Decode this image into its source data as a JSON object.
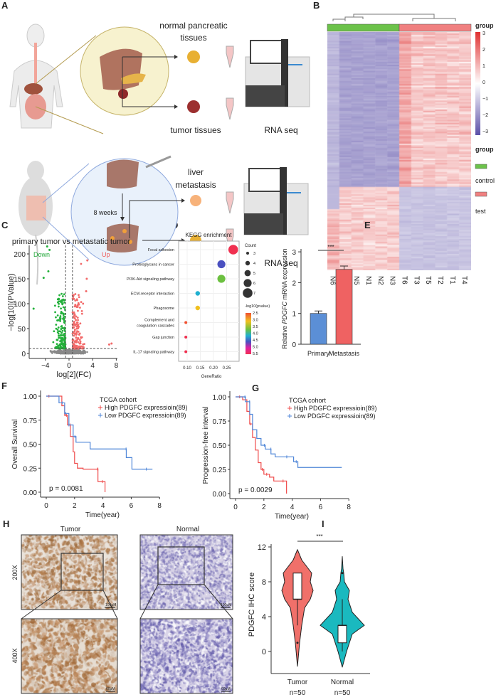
{
  "panels": {
    "A": "A",
    "B": "B",
    "C": "C",
    "D": "D",
    "E": "E",
    "F": "F",
    "G": "G",
    "H": "H",
    "I": "I"
  },
  "panel_a": {
    "normal_line1": "normal pancreatic",
    "normal_line2": "tissues",
    "tumor_tissues": "tumor tissues",
    "rna_seq_1": "RNA seq",
    "liver": "liver",
    "metastasis": "metastasis",
    "weeks": "8 weeks",
    "primary": "primary",
    "tumor": "tumor",
    "rna_seq_2": "RNA seq"
  },
  "panel_b": {
    "columns": [
      "N6",
      "N4",
      "N5",
      "N1",
      "N2",
      "N3",
      "T6",
      "T3",
      "T5",
      "T2",
      "T1",
      "T4"
    ],
    "legend_title": "group",
    "scale_ticks": [
      "3",
      "2",
      "1",
      "0",
      "−1",
      "−2",
      "−3"
    ],
    "group_title": "group",
    "control": "control",
    "test": "test",
    "colors": {
      "control": "#6cc24a",
      "test": "#f08080",
      "high": "#e03030",
      "low": "#5b4fa8"
    }
  },
  "chart_data": [
    {
      "id": "C",
      "type": "scatter",
      "title": "primary tumor vs metastatic tumor",
      "xlabel": "log[2](FC)",
      "ylabel": "−log[10](PValue)",
      "xticks": [
        "−4",
        "0",
        "4",
        "8"
      ],
      "yticks": [
        "0",
        "50",
        "100",
        "150",
        "200"
      ],
      "xlim": [
        -7,
        8
      ],
      "ylim": [
        0,
        215
      ],
      "annotations": {
        "down": "Down",
        "up": "Up"
      },
      "thresholds": {
        "fc": 0.585,
        "p": 10
      }
    },
    {
      "id": "D",
      "type": "scatter",
      "title": "KEGG enrichment",
      "xlabel": "GeneRatio",
      "xticks": [
        "0.10",
        "0.15",
        "0.20",
        "0.25"
      ],
      "xlim": [
        0.085,
        0.29
      ],
      "pathways": [
        {
          "name": "Focal adhesion",
          "ratio": 0.275,
          "count": 7,
          "log10p": 5.5
        },
        {
          "name": "Proteoglycans in cancer",
          "ratio": 0.23,
          "count": 6,
          "log10p": 4.7
        },
        {
          "name": "PI3K-Akt signaling pathway",
          "ratio": 0.23,
          "count": 6,
          "log10p": 3.6
        },
        {
          "name": "ECM-receptor interaction",
          "ratio": 0.14,
          "count": 4,
          "log10p": 3.8
        },
        {
          "name": "Phagosome",
          "ratio": 0.14,
          "count": 4,
          "log10p": 2.8
        },
        {
          "name": "Complement and|coagulation cascades",
          "ratio": 0.095,
          "count": 3,
          "log10p": 2.7
        },
        {
          "name": "Gap junction",
          "ratio": 0.095,
          "count": 3,
          "log10p": 5.3
        },
        {
          "name": "IL-17 signaling pathway",
          "ratio": 0.095,
          "count": 3,
          "log10p": 5.5
        }
      ],
      "count_legend": {
        "title": "Count",
        "values": [
          "3",
          "4",
          "5",
          "6",
          "7"
        ]
      },
      "color_legend": {
        "title": "-log10(pvalue)",
        "values": [
          "2.5",
          "3.0",
          "3.5",
          "4.0",
          "4.5",
          "5.0",
          "5.5"
        ]
      }
    },
    {
      "id": "E",
      "type": "bar",
      "categories": [
        "Primary",
        "Metastasis"
      ],
      "values": [
        1.0,
        2.43
      ],
      "errors": [
        0.08,
        0.11
      ],
      "ylabel_pre": "Relative ",
      "ylabel_gene": "PDGFC",
      "ylabel_post": " mRNA expression",
      "yticks": [
        "0",
        "1",
        "2",
        "3"
      ],
      "ylim": [
        0,
        3
      ],
      "significance": "***",
      "colors": [
        "#5b8fd6",
        "#ef6262"
      ]
    },
    {
      "id": "F",
      "type": "line",
      "ylabel": "Overall Survival",
      "xlabel": "Time(year)",
      "legend_title": "TCGA cohort",
      "pvalue": "p = 0.0081",
      "xticks": [
        "0",
        "2",
        "4",
        "6",
        "8"
      ],
      "yticks": [
        "0.00",
        "0.25",
        "0.50",
        "0.75",
        "1.00"
      ],
      "xlim": [
        0,
        8
      ],
      "ylim": [
        0,
        1
      ],
      "series": [
        {
          "name": "High PDGFC expressioin(89)",
          "color": "#ef4b4b",
          "points": [
            [
              0,
              1
            ],
            [
              0.8,
              1
            ],
            [
              1.1,
              0.9
            ],
            [
              1.3,
              0.8
            ],
            [
              1.5,
              0.7
            ],
            [
              1.7,
              0.58
            ],
            [
              1.9,
              0.42
            ],
            [
              2.0,
              0.3
            ],
            [
              2.2,
              0.25
            ],
            [
              2.6,
              0.24
            ],
            [
              3.6,
              0.24
            ],
            [
              3.65,
              0.11
            ],
            [
              4.15,
              0.11
            ],
            [
              4.15,
              0
            ]
          ]
        },
        {
          "name": "Low PDGFC expressioin(89)",
          "color": "#4f86d8",
          "points": [
            [
              0,
              1
            ],
            [
              0.9,
              0.93
            ],
            [
              1.3,
              0.82
            ],
            [
              1.6,
              0.7
            ],
            [
              1.9,
              0.58
            ],
            [
              2.1,
              0.52
            ],
            [
              3.0,
              0.52
            ],
            [
              3.1,
              0.45
            ],
            [
              5.6,
              0.45
            ],
            [
              5.65,
              0.36
            ],
            [
              6.0,
              0.36
            ],
            [
              6.05,
              0.24
            ],
            [
              7.5,
              0.24
            ]
          ]
        }
      ]
    },
    {
      "id": "G",
      "type": "line",
      "ylabel": "Progression-free interval",
      "xlabel": "Time(year)",
      "legend_title": "TCGA cohort",
      "pvalue": "p = 0.0029",
      "xticks": [
        "0",
        "2",
        "4",
        "6",
        "8"
      ],
      "yticks": [
        "0.00",
        "0.25",
        "0.50",
        "0.75",
        "1.00"
      ],
      "xlim": [
        0,
        8
      ],
      "ylim": [
        0,
        1
      ],
      "series": [
        {
          "name": "High PDGFC expressioin(89)",
          "color": "#ef4b4b",
          "points": [
            [
              0,
              1
            ],
            [
              0.5,
              0.97
            ],
            [
              0.8,
              0.85
            ],
            [
              1.0,
              0.72
            ],
            [
              1.2,
              0.58
            ],
            [
              1.4,
              0.45
            ],
            [
              1.6,
              0.32
            ],
            [
              1.8,
              0.25
            ],
            [
              2.0,
              0.2
            ],
            [
              2.4,
              0.17
            ],
            [
              2.7,
              0.13
            ],
            [
              3.6,
              0.13
            ],
            [
              3.6,
              0
            ]
          ]
        },
        {
          "name": "Low PDGFC expressioin(89)",
          "color": "#4f86d8",
          "points": [
            [
              0,
              1
            ],
            [
              0.7,
              0.95
            ],
            [
              1.0,
              0.82
            ],
            [
              1.2,
              0.66
            ],
            [
              1.5,
              0.57
            ],
            [
              1.8,
              0.5
            ],
            [
              2.1,
              0.46
            ],
            [
              2.5,
              0.41
            ],
            [
              2.8,
              0.38
            ],
            [
              3.5,
              0.38
            ],
            [
              4.1,
              0.33
            ],
            [
              4.4,
              0.27
            ],
            [
              7.5,
              0.27
            ]
          ]
        }
      ]
    },
    {
      "id": "I",
      "type": "violin",
      "ylabel": "PDGFC IHC score",
      "categories": [
        "Tumor",
        "Normal"
      ],
      "n_labels": [
        "n=50",
        "n=50"
      ],
      "yticks": [
        "0",
        "4",
        "8",
        "12"
      ],
      "ylim": [
        -2,
        12.5
      ],
      "significance": "***",
      "groups": [
        {
          "name": "Tumor",
          "color": "#f0706a",
          "q1": 6,
          "median": 6,
          "q3": 9,
          "whisker_low": 3,
          "whisker_high": 9,
          "min": -1.7,
          "max": 11.7,
          "outlier": 1
        },
        {
          "name": "Normal",
          "color": "#1ab9bf",
          "q1": 1,
          "median": 3,
          "q3": 3,
          "whisker_low": 0,
          "whisker_high": 6,
          "min": -1.8,
          "max": 10.9,
          "outlier": 9
        }
      ]
    }
  ],
  "panel_h": {
    "tumor": "Tumor",
    "normal": "Normal",
    "mag1": "200X",
    "mag2": "400X",
    "scale1": "100μM",
    "scale2": "60μM"
  }
}
